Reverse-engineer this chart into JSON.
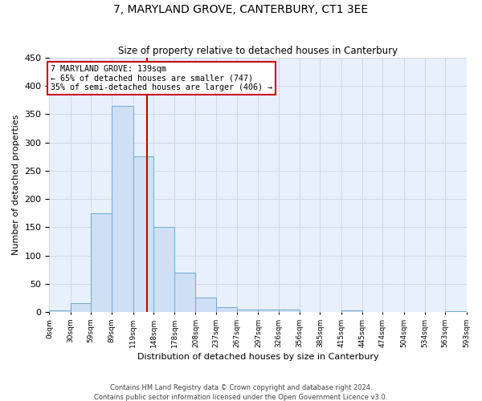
{
  "title": "7, MARYLAND GROVE, CANTERBURY, CT1 3EE",
  "subtitle": "Size of property relative to detached houses in Canterbury",
  "xlabel": "Distribution of detached houses by size in Canterbury",
  "ylabel": "Number of detached properties",
  "footnote1": "Contains HM Land Registry data © Crown copyright and database right 2024.",
  "footnote2": "Contains public sector information licensed under the Open Government Licence v3.0.",
  "annotation_line1": "7 MARYLAND GROVE: 139sqm",
  "annotation_line2": "← 65% of detached houses are smaller (747)",
  "annotation_line3": "35% of semi-detached houses are larger (406) →",
  "bar_color": "#cfe0f5",
  "bar_edge_color": "#6fa8d4",
  "line_color": "#cc0000",
  "annotation_box_edge": "#cc0000",
  "background_color": "#e8f0fb",
  "grid_color": "#d0d8e8",
  "bins": [
    "0sqm",
    "30sqm",
    "59sqm",
    "89sqm",
    "119sqm",
    "148sqm",
    "178sqm",
    "208sqm",
    "237sqm",
    "267sqm",
    "297sqm",
    "326sqm",
    "356sqm",
    "385sqm",
    "415sqm",
    "445sqm",
    "474sqm",
    "504sqm",
    "534sqm",
    "563sqm",
    "593sqm"
  ],
  "bin_edges": [
    0,
    30,
    59,
    89,
    119,
    148,
    178,
    208,
    237,
    267,
    297,
    326,
    356,
    385,
    415,
    445,
    474,
    504,
    534,
    563,
    593
  ],
  "bar_heights": [
    3,
    15,
    175,
    365,
    275,
    150,
    70,
    25,
    8,
    5,
    5,
    5,
    0,
    0,
    3,
    0,
    0,
    0,
    0,
    2
  ],
  "property_size": 139,
  "ylim": [
    0,
    450
  ],
  "yticks": [
    0,
    50,
    100,
    150,
    200,
    250,
    300,
    350,
    400,
    450
  ]
}
